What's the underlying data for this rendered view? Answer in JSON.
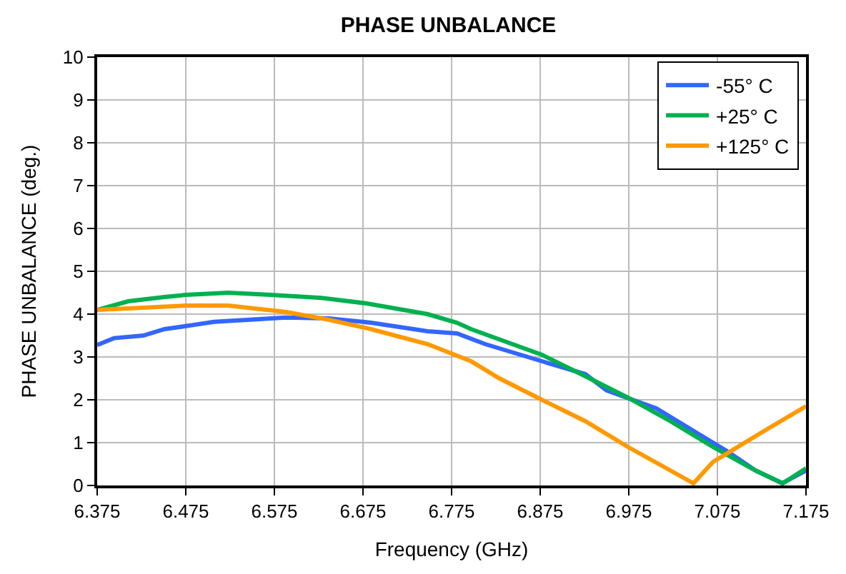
{
  "chart_data": {
    "type": "line",
    "title": "PHASE UNBALANCE",
    "xlabel": "Frequency (GHz)",
    "ylabel": "PHASE UNBALANCE (deg.)",
    "xlim": [
      6.375,
      7.175
    ],
    "xticks": [
      6.375,
      6.475,
      6.575,
      6.675,
      6.775,
      6.875,
      6.975,
      7.075,
      7.175
    ],
    "ylim": [
      0,
      10
    ],
    "yticks": [
      0,
      1,
      2,
      3,
      4,
      5,
      6,
      7,
      8,
      9,
      10
    ],
    "grid": true,
    "legend": "top right",
    "marker": "none",
    "line_style": "solid",
    "series": [
      {
        "name": "-55° C",
        "color": "#3366ff",
        "x": [
          6.375,
          6.394,
          6.427,
          6.451,
          6.475,
          6.507,
          6.555,
          6.588,
          6.636,
          6.684,
          6.716,
          6.748,
          6.781,
          6.813,
          6.845,
          6.877,
          6.926,
          6.95,
          7.006,
          7.054,
          7.086,
          7.118,
          7.148,
          7.175
        ],
        "values": [
          3.28,
          3.44,
          3.5,
          3.65,
          3.72,
          3.82,
          3.88,
          3.92,
          3.9,
          3.8,
          3.7,
          3.6,
          3.55,
          3.3,
          3.1,
          2.9,
          2.6,
          2.22,
          1.8,
          1.2,
          0.8,
          0.35,
          0.05,
          0.35
        ]
      },
      {
        "name": "+25° C",
        "color": "#00b050",
        "x": [
          6.375,
          6.41,
          6.451,
          6.475,
          6.523,
          6.571,
          6.628,
          6.679,
          6.748,
          6.781,
          6.797,
          6.877,
          6.926,
          6.974,
          7.022,
          7.07,
          7.118,
          7.149,
          7.175
        ],
        "values": [
          4.1,
          4.3,
          4.4,
          4.45,
          4.5,
          4.45,
          4.38,
          4.25,
          4.0,
          3.8,
          3.65,
          3.05,
          2.55,
          2.05,
          1.5,
          0.9,
          0.35,
          0.05,
          0.4
        ]
      },
      {
        "name": "+125° C",
        "color": "#ff9900",
        "x": [
          6.375,
          6.427,
          6.475,
          6.523,
          6.588,
          6.636,
          6.684,
          6.748,
          6.797,
          6.829,
          6.877,
          6.926,
          6.974,
          7.022,
          7.048,
          7.07,
          7.134,
          7.175
        ],
        "values": [
          4.1,
          4.15,
          4.2,
          4.2,
          4.05,
          3.87,
          3.65,
          3.3,
          2.9,
          2.5,
          2.0,
          1.5,
          0.9,
          0.35,
          0.05,
          0.55,
          1.35,
          1.85
        ]
      }
    ]
  }
}
